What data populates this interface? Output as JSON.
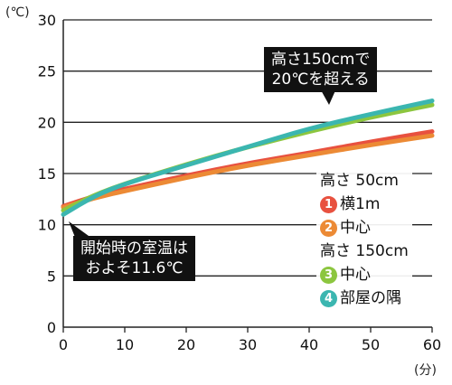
{
  "units": {
    "y": "(℃)",
    "x": "(分)"
  },
  "callouts": {
    "top": {
      "line1": "高さ150cmで",
      "line2": "20℃を超える"
    },
    "bottom": {
      "line1": "開始時の室温は",
      "line2": "およそ11.6℃"
    }
  },
  "legend": {
    "group1": {
      "title": "高さ 50cm",
      "items": [
        {
          "num": "1",
          "label": "横1m",
          "color": "#e8513f"
        },
        {
          "num": "2",
          "label": "中心",
          "color": "#ec8a35"
        }
      ]
    },
    "group2": {
      "title": "高さ 150cm",
      "items": [
        {
          "num": "3",
          "label": "中心",
          "color": "#8cc63f"
        },
        {
          "num": "4",
          "label": "部屋の隅",
          "color": "#3bb6b0"
        }
      ]
    }
  },
  "chart_data": {
    "type": "line",
    "xlim": [
      0,
      60
    ],
    "ylim": [
      0,
      30
    ],
    "x_ticks": [
      0,
      10,
      20,
      30,
      40,
      50,
      60
    ],
    "y_ticks": [
      0,
      5,
      10,
      15,
      20,
      25,
      30
    ],
    "grid": "horizontal",
    "series": [
      {
        "name": "横1m",
        "color": "#e8513f",
        "x": [
          0,
          5,
          10,
          20,
          30,
          40,
          50,
          60
        ],
        "y": [
          11.8,
          12.8,
          13.5,
          14.8,
          16.0,
          17.0,
          18.1,
          19.1
        ]
      },
      {
        "name": "中心",
        "color": "#ec8a35",
        "x": [
          0,
          5,
          10,
          20,
          30,
          40,
          50,
          60
        ],
        "y": [
          11.7,
          12.6,
          13.3,
          14.6,
          15.8,
          16.8,
          17.8,
          18.7
        ]
      },
      {
        "name": "中心",
        "color": "#8cc63f",
        "x": [
          0,
          5,
          10,
          20,
          30,
          40,
          50,
          60
        ],
        "y": [
          11.4,
          12.9,
          14.0,
          15.9,
          17.6,
          19.1,
          20.5,
          21.7
        ]
      },
      {
        "name": "部屋の隅",
        "color": "#3bb6b0",
        "x": [
          0,
          5,
          10,
          20,
          30,
          40,
          50,
          60
        ],
        "y": [
          11.0,
          12.8,
          14.0,
          15.8,
          17.6,
          19.4,
          20.8,
          22.1
        ]
      }
    ]
  }
}
